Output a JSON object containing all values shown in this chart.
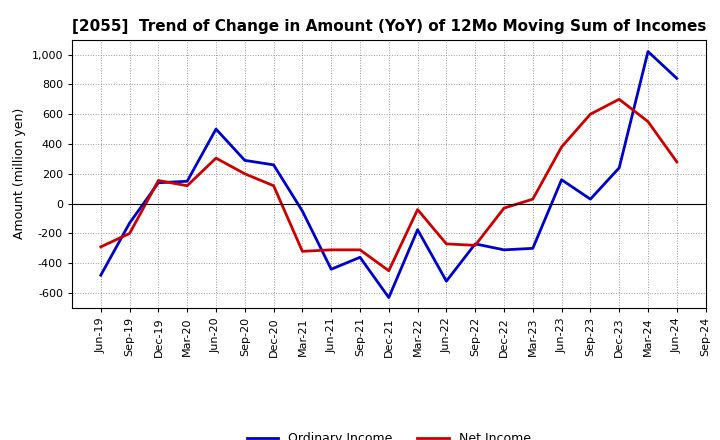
{
  "title": "[2055]  Trend of Change in Amount (YoY) of 12Mo Moving Sum of Incomes",
  "ylabel": "Amount (million yen)",
  "x_labels": [
    "Jun-19",
    "Sep-19",
    "Dec-19",
    "Mar-20",
    "Jun-20",
    "Sep-20",
    "Dec-20",
    "Mar-21",
    "Jun-21",
    "Sep-21",
    "Dec-21",
    "Mar-22",
    "Jun-22",
    "Sep-22",
    "Dec-22",
    "Mar-23",
    "Jun-23",
    "Sep-23",
    "Dec-23",
    "Mar-24",
    "Jun-24",
    "Sep-24"
  ],
  "ordinary_income": [
    -480,
    -130,
    140,
    150,
    500,
    290,
    260,
    -50,
    -440,
    -360,
    -630,
    -175,
    -520,
    -270,
    -310,
    -300,
    160,
    30,
    240,
    1020,
    840,
    null
  ],
  "net_income": [
    -290,
    -200,
    155,
    120,
    305,
    200,
    120,
    -320,
    -310,
    -310,
    -450,
    -40,
    -270,
    -280,
    -30,
    30,
    380,
    600,
    700,
    550,
    280,
    null
  ],
  "ordinary_income_color": "#0000cc",
  "net_income_color": "#cc0000",
  "ylim": [
    -700,
    1100
  ],
  "yticks": [
    -600,
    -400,
    -200,
    0,
    200,
    400,
    600,
    800,
    1000
  ],
  "legend_labels": [
    "Ordinary Income",
    "Net Income"
  ],
  "background_color": "#ffffff",
  "grid_color": "#999999",
  "line_width": 2.0,
  "title_fontsize": 11,
  "ylabel_fontsize": 9,
  "tick_fontsize": 8
}
